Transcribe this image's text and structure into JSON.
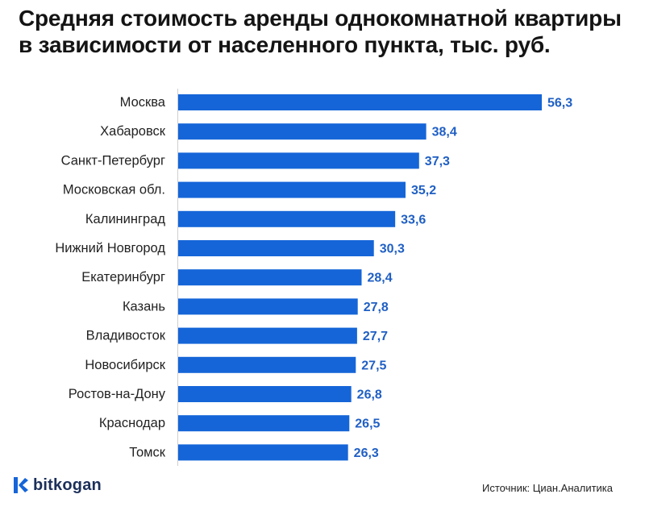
{
  "colors": {
    "bar": "#1565d8",
    "value_label": "#1f5fc4",
    "axis": "#cfcfcf",
    "logo_text": "#1c2f5a"
  },
  "chart_data": {
    "type": "bar",
    "orientation": "horizontal",
    "title": "Средняя стоимость аренды однокомнатной квартиры в зависимости от населенного пункта, тыс. руб.",
    "categories": [
      "Москва",
      "Хабаровск",
      "Санкт-Петербург",
      "Московская обл.",
      "Калининград",
      "Нижний Новгород",
      "Екатеринбург",
      "Казань",
      "Владивосток",
      "Новосибирск",
      "Ростов-на-Дону",
      "Краснодар",
      "Томск"
    ],
    "values": [
      56.3,
      38.4,
      37.3,
      35.2,
      33.6,
      30.3,
      28.4,
      27.8,
      27.7,
      27.5,
      26.8,
      26.5,
      26.3
    ],
    "value_labels": [
      "56,3",
      "38,4",
      "37,3",
      "35,2",
      "33,6",
      "30,3",
      "28,4",
      "27,8",
      "27,7",
      "27,5",
      "26,8",
      "26,5",
      "26,3"
    ],
    "xlim": [
      0,
      56.3
    ],
    "grid": false,
    "legend": "none"
  },
  "footer": {
    "logo_text": "bitkogan",
    "source": "Источник: Циан.Аналитика"
  }
}
